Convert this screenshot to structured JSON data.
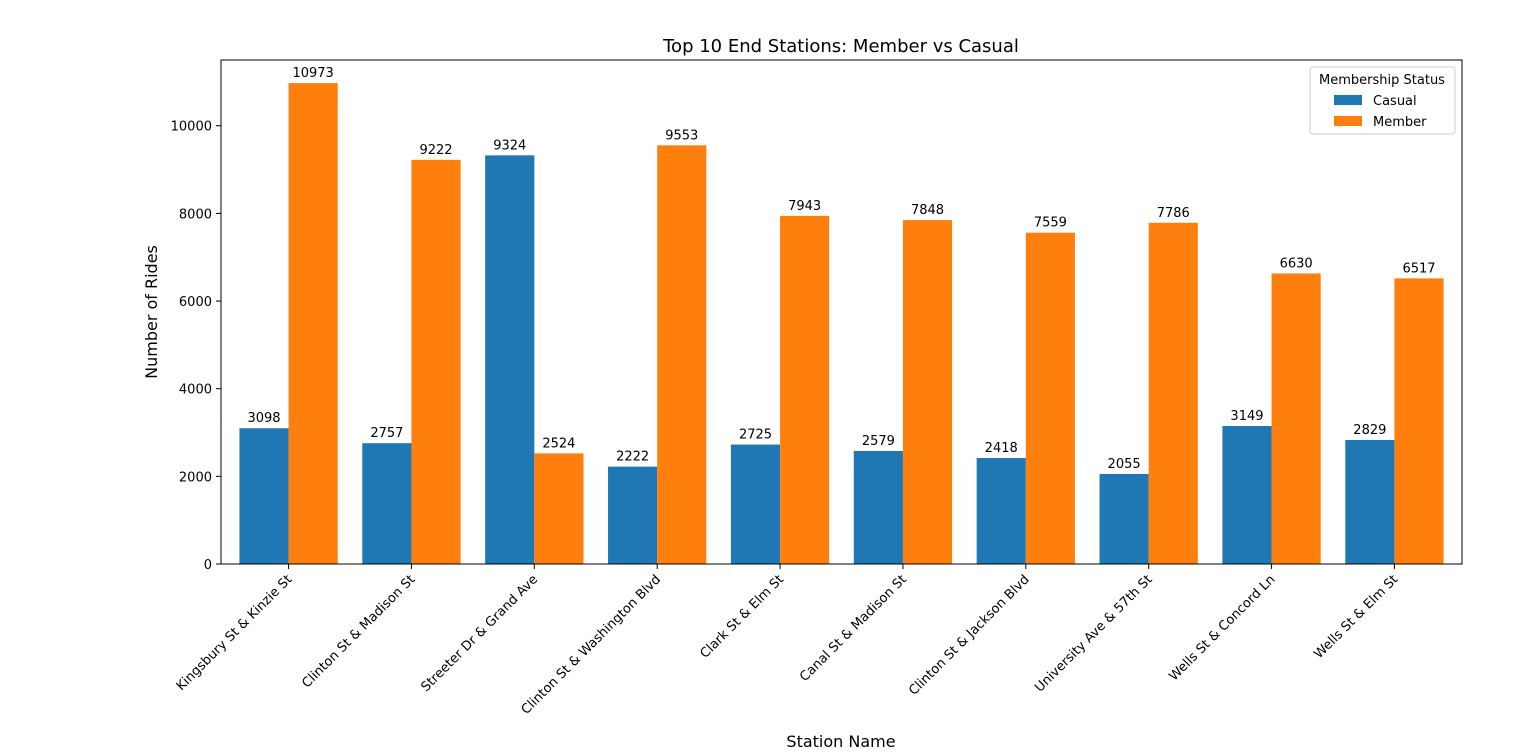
{
  "chart_data": {
    "type": "bar",
    "title": "Top 10 End Stations: Member vs Casual",
    "xlabel": "Station Name",
    "ylabel": "Number of Rides",
    "ylim": [
      0,
      11500
    ],
    "yticks": [
      0,
      2000,
      4000,
      6000,
      8000,
      10000
    ],
    "grid": false,
    "legend": {
      "title": "Membership Status",
      "placement": "top-right"
    },
    "categories": [
      "Kingsbury St & Kinzie St",
      "Clinton St & Madison St",
      "Streeter Dr & Grand Ave",
      "Clinton St & Washington Blvd",
      "Clark St & Elm St",
      "Canal St & Madison St",
      "Clinton St & Jackson Blvd",
      "University Ave & 57th St",
      "Wells St & Concord Ln",
      "Wells St & Elm St"
    ],
    "series": [
      {
        "name": "Casual",
        "color": "#1f77b4",
        "values": [
          3098,
          2757,
          9324,
          2222,
          2725,
          2579,
          2418,
          2055,
          3149,
          2829
        ]
      },
      {
        "name": "Member",
        "color": "#ff7f0e",
        "values": [
          10973,
          9222,
          2524,
          9553,
          7943,
          7848,
          7559,
          7786,
          6630,
          6517
        ]
      }
    ]
  }
}
